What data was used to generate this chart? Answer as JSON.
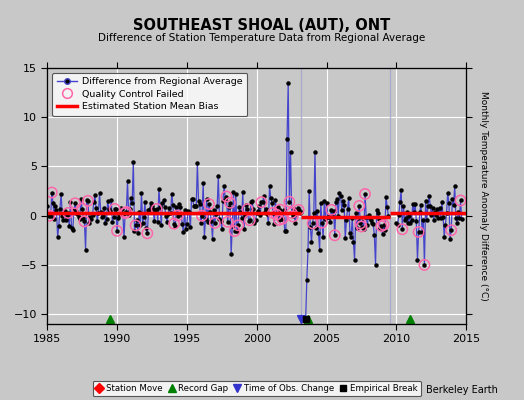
{
  "title": "SOUTHEAST SHOAL (AUT), ONT",
  "subtitle": "Difference of Station Temperature Data from Regional Average",
  "ylabel": "Monthly Temperature Anomaly Difference (°C)",
  "xlim": [
    1985,
    2015
  ],
  "ylim": [
    -11,
    15
  ],
  "yticks": [
    -10,
    -5,
    0,
    5,
    10,
    15
  ],
  "xticks": [
    1985,
    1990,
    1995,
    2000,
    2005,
    2010,
    2015
  ],
  "bg_color": "#c8c8c8",
  "plot_bg_color": "#c8c8c8",
  "bias_segments": [
    {
      "x_start": 1985.0,
      "x_end": 2003.2,
      "bias": 0.3
    },
    {
      "x_start": 2003.2,
      "x_end": 2009.5,
      "bias": -0.15
    },
    {
      "x_start": 2009.5,
      "x_end": 2015.0,
      "bias": 0.3
    }
  ],
  "vlines": [
    2003.2,
    2009.5
  ],
  "record_gaps": [
    1989.5,
    2003.7,
    2011.0
  ],
  "obs_changes": [
    2003.2
  ],
  "empirical_breaks": [
    2003.5
  ],
  "station_moves": [],
  "berkeley_earth_text": "Berkeley Earth",
  "seed": 42
}
